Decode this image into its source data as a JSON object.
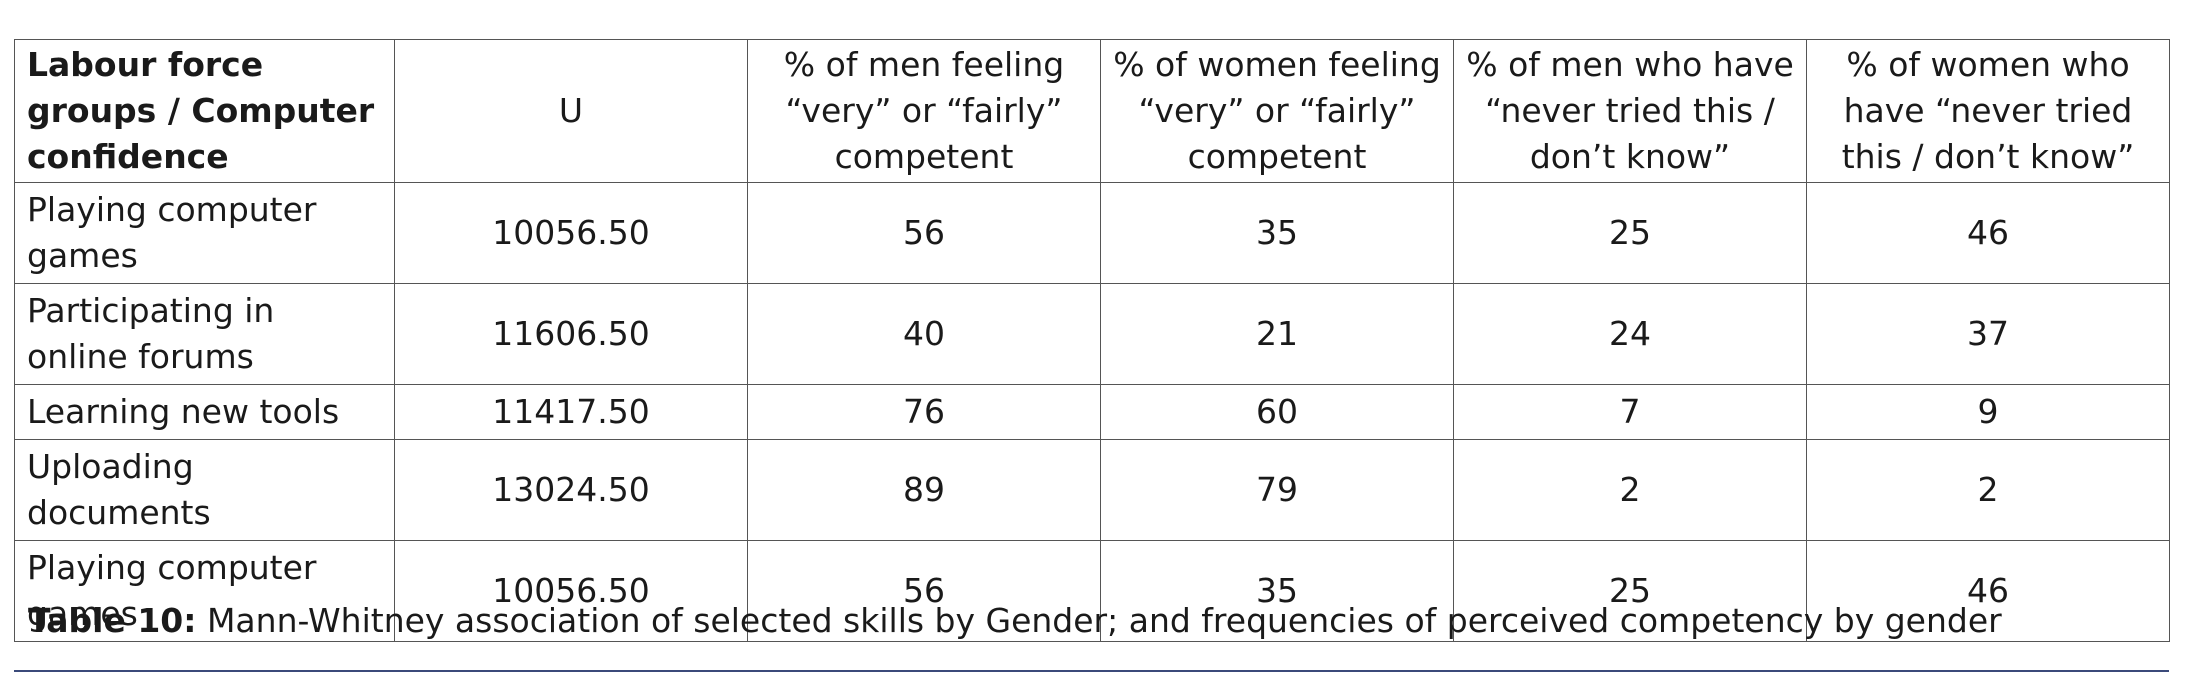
{
  "table": {
    "headers": [
      "Labour force groups / Computer confidence",
      "U",
      "% of men feeling “very” or “fairly” competent",
      "% of women feeling “very” or “fairly” competent",
      "% of men who have “never tried this / don’t know”",
      "% of women who have “never tried this / don’t know”"
    ],
    "rows": [
      [
        "Playing computer games",
        "10056.50",
        "56",
        "35",
        "25",
        "46"
      ],
      [
        "Participating in online forums",
        "11606.50",
        "40",
        "21",
        "24",
        "37"
      ],
      [
        "Learning new tools",
        "11417.50",
        "76",
        "60",
        "7",
        "9"
      ],
      [
        "Uploading documents",
        "13024.50",
        "89",
        "79",
        "2",
        "2"
      ],
      [
        "Playing computer games",
        "10056.50",
        "56",
        "35",
        "25",
        "46"
      ]
    ]
  },
  "caption": {
    "label": "Table 10:",
    "text": "Mann-Whitney association of selected skills by Gender; and frequencies of perceived competency by gender"
  },
  "colors": {
    "rule": "#3b4a7a",
    "border": "#555555"
  }
}
